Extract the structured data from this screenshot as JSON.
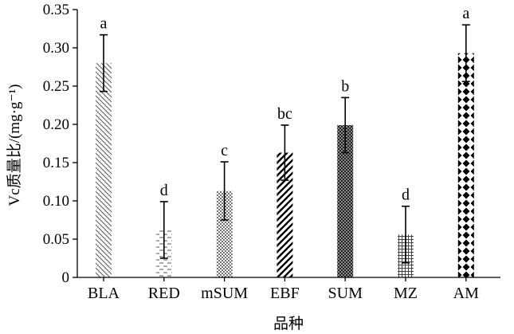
{
  "chart_data": {
    "type": "bar",
    "categories": [
      "BLA",
      "RED",
      "mSUM",
      "EBF",
      "SUM",
      "MZ",
      "AM"
    ],
    "values": [
      0.28,
      0.062,
      0.113,
      0.163,
      0.199,
      0.056,
      0.293
    ],
    "errors": [
      0.037,
      0.037,
      0.038,
      0.036,
      0.036,
      0.037,
      0.037
    ],
    "significance": [
      "a",
      "d",
      "c",
      "bc",
      "b",
      "d",
      "a"
    ],
    "patterns": [
      "diag-lines-down",
      "dash-lines",
      "dots",
      "diag-lines-up",
      "dense-check",
      "grid",
      "diamonds"
    ],
    "title": "",
    "xlabel": "品种",
    "ylabel": "Vc质量比/(mg·g⁻¹)",
    "ylim": [
      0,
      0.35
    ],
    "yticks": [
      "0",
      "0.05",
      "0.10",
      "0.15",
      "0.20",
      "0.25",
      "0.30",
      "0.35"
    ],
    "ytick_values": [
      0,
      0.05,
      0.1,
      0.15,
      0.2,
      0.25,
      0.3,
      0.35
    ],
    "grid": false,
    "legend": "none"
  }
}
